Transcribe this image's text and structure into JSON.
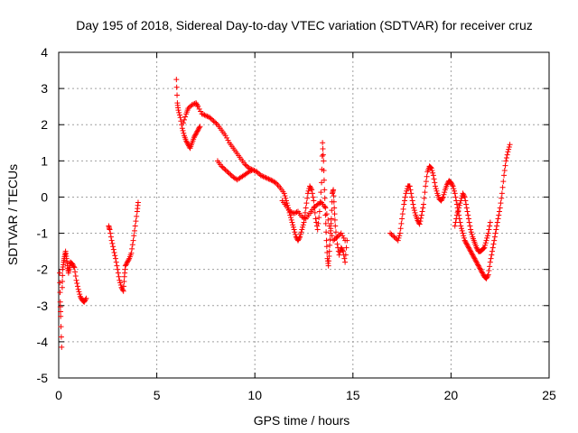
{
  "chart_data": {
    "type": "scatter",
    "title": "Day 195 of 2018, Sidereal Day-to-day VTEC variation (SDTVAR) for receiver cruz",
    "xlabel": "GPS time / hours",
    "ylabel": "SDTVAR / TECUs",
    "xlim": [
      0,
      25
    ],
    "ylim": [
      -5,
      4
    ],
    "xticks": [
      "0",
      "5",
      "10",
      "15",
      "20",
      "25"
    ],
    "yticks": [
      "-5",
      "-4",
      "-3",
      "-2",
      "-1",
      "0",
      "1",
      "2",
      "3",
      "4"
    ],
    "grid": true,
    "legend": "none",
    "marker": "+",
    "marker_color": "#ff0000",
    "series": [
      {
        "name": "SDTVAR",
        "points": [
          [
            0.05,
            -2.1
          ],
          [
            0.08,
            -2.9
          ],
          [
            0.1,
            -3.3
          ],
          [
            0.15,
            -4.15
          ],
          [
            0.18,
            -2.5
          ],
          [
            0.2,
            -2.0
          ],
          [
            0.25,
            -1.8
          ],
          [
            0.3,
            -1.65
          ],
          [
            0.35,
            -1.5
          ],
          [
            0.4,
            -1.7
          ],
          [
            0.45,
            -1.9
          ],
          [
            0.5,
            -2.1
          ],
          [
            0.55,
            -1.95
          ],
          [
            0.6,
            -1.8
          ],
          [
            0.7,
            -1.85
          ],
          [
            0.8,
            -1.95
          ],
          [
            0.9,
            -2.3
          ],
          [
            1.0,
            -2.55
          ],
          [
            1.1,
            -2.75
          ],
          [
            1.2,
            -2.85
          ],
          [
            1.3,
            -2.9
          ],
          [
            1.4,
            -2.8
          ],
          [
            2.55,
            -0.8
          ],
          [
            2.6,
            -0.9
          ],
          [
            2.7,
            -1.2
          ],
          [
            2.8,
            -1.45
          ],
          [
            2.9,
            -1.7
          ],
          [
            3.0,
            -2.0
          ],
          [
            3.1,
            -2.3
          ],
          [
            3.2,
            -2.5
          ],
          [
            3.3,
            -2.6
          ],
          [
            3.35,
            -2.2
          ],
          [
            3.4,
            -1.9
          ],
          [
            3.5,
            -1.8
          ],
          [
            3.6,
            -1.7
          ],
          [
            3.7,
            -1.55
          ],
          [
            3.8,
            -1.2
          ],
          [
            3.9,
            -0.8
          ],
          [
            4.0,
            -0.4
          ],
          [
            4.05,
            -0.15
          ],
          [
            6.0,
            3.25
          ],
          [
            6.05,
            2.6
          ],
          [
            6.1,
            2.4
          ],
          [
            6.2,
            2.2
          ],
          [
            6.3,
            1.9
          ],
          [
            6.4,
            1.7
          ],
          [
            6.5,
            1.55
          ],
          [
            6.6,
            1.45
          ],
          [
            6.7,
            1.35
          ],
          [
            6.8,
            1.5
          ],
          [
            6.9,
            1.65
          ],
          [
            7.0,
            1.75
          ],
          [
            7.1,
            1.85
          ],
          [
            7.2,
            1.95
          ],
          [
            6.35,
            2.05
          ],
          [
            6.5,
            2.3
          ],
          [
            6.6,
            2.45
          ],
          [
            6.8,
            2.55
          ],
          [
            7.0,
            2.6
          ],
          [
            7.1,
            2.5
          ],
          [
            7.3,
            2.3
          ],
          [
            7.5,
            2.25
          ],
          [
            7.7,
            2.2
          ],
          [
            7.9,
            2.1
          ],
          [
            8.1,
            2.0
          ],
          [
            8.3,
            1.85
          ],
          [
            8.5,
            1.7
          ],
          [
            8.7,
            1.5
          ],
          [
            8.9,
            1.35
          ],
          [
            9.1,
            1.2
          ],
          [
            9.3,
            1.05
          ],
          [
            9.5,
            0.9
          ],
          [
            9.7,
            0.8
          ],
          [
            9.9,
            0.75
          ],
          [
            8.1,
            1.0
          ],
          [
            8.3,
            0.85
          ],
          [
            8.5,
            0.75
          ],
          [
            8.7,
            0.65
          ],
          [
            8.9,
            0.55
          ],
          [
            9.1,
            0.48
          ],
          [
            9.3,
            0.55
          ],
          [
            9.5,
            0.62
          ],
          [
            9.7,
            0.7
          ],
          [
            9.9,
            0.75
          ],
          [
            10.1,
            0.7
          ],
          [
            10.3,
            0.6
          ],
          [
            10.5,
            0.55
          ],
          [
            10.7,
            0.5
          ],
          [
            10.9,
            0.45
          ],
          [
            11.1,
            0.38
          ],
          [
            11.3,
            0.25
          ],
          [
            11.5,
            0.1
          ],
          [
            11.6,
            -0.1
          ],
          [
            11.7,
            -0.3
          ],
          [
            11.8,
            -0.5
          ],
          [
            11.9,
            -0.7
          ],
          [
            12.0,
            -0.9
          ],
          [
            12.1,
            -1.1
          ],
          [
            12.2,
            -1.2
          ],
          [
            12.3,
            -1.1
          ],
          [
            12.4,
            -0.9
          ],
          [
            12.5,
            -0.7
          ],
          [
            12.6,
            -0.3
          ],
          [
            12.7,
            0.1
          ],
          [
            12.8,
            0.3
          ],
          [
            12.9,
            0.2
          ],
          [
            13.0,
            -0.1
          ],
          [
            13.1,
            -0.6
          ],
          [
            13.2,
            -0.9
          ],
          [
            13.3,
            -0.4
          ],
          [
            13.4,
            0.4
          ],
          [
            13.45,
            1.5
          ],
          [
            13.5,
            1.0
          ],
          [
            13.55,
            0.2
          ],
          [
            13.6,
            -0.5
          ],
          [
            13.65,
            -1.2
          ],
          [
            13.7,
            -1.7
          ],
          [
            13.75,
            -1.9
          ],
          [
            13.8,
            -1.5
          ],
          [
            13.85,
            -1.0
          ],
          [
            13.9,
            -0.6
          ],
          [
            13.95,
            0.1
          ],
          [
            14.0,
            0.2
          ],
          [
            14.05,
            -0.3
          ],
          [
            14.1,
            -0.8
          ],
          [
            14.2,
            -1.3
          ],
          [
            14.3,
            -1.6
          ],
          [
            14.4,
            -1.4
          ],
          [
            14.5,
            -1.5
          ],
          [
            14.6,
            -1.8
          ],
          [
            14.7,
            -1.2
          ],
          [
            11.4,
            -0.1
          ],
          [
            11.6,
            -0.25
          ],
          [
            11.8,
            -0.4
          ],
          [
            12.0,
            -0.45
          ],
          [
            12.2,
            -0.4
          ],
          [
            12.4,
            -0.55
          ],
          [
            12.6,
            -0.6
          ],
          [
            12.8,
            -0.45
          ],
          [
            13.0,
            -0.3
          ],
          [
            13.2,
            -0.2
          ],
          [
            13.4,
            -0.15
          ],
          [
            13.6,
            -0.3
          ],
          [
            13.8,
            -0.8
          ],
          [
            14.0,
            -1.2
          ],
          [
            14.2,
            -1.1
          ],
          [
            14.4,
            -1.0
          ],
          [
            14.6,
            -1.2
          ],
          [
            16.9,
            -1.0
          ],
          [
            17.1,
            -1.1
          ],
          [
            17.3,
            -1.2
          ],
          [
            17.4,
            -1.0
          ],
          [
            17.5,
            -0.6
          ],
          [
            17.6,
            -0.2
          ],
          [
            17.7,
            0.1
          ],
          [
            17.8,
            0.3
          ],
          [
            17.9,
            0.3
          ],
          [
            18.0,
            0.0
          ],
          [
            18.1,
            -0.3
          ],
          [
            18.2,
            -0.5
          ],
          [
            18.3,
            -0.65
          ],
          [
            18.4,
            -0.75
          ],
          [
            18.5,
            -0.5
          ],
          [
            18.6,
            -0.2
          ],
          [
            18.7,
            0.3
          ],
          [
            18.8,
            0.7
          ],
          [
            18.9,
            0.85
          ],
          [
            19.0,
            0.8
          ],
          [
            19.1,
            0.6
          ],
          [
            19.2,
            0.3
          ],
          [
            19.3,
            0.1
          ],
          [
            19.4,
            -0.05
          ],
          [
            19.5,
            -0.1
          ],
          [
            19.6,
            0.0
          ],
          [
            19.7,
            0.2
          ],
          [
            19.8,
            0.35
          ],
          [
            19.9,
            0.45
          ],
          [
            20.0,
            0.4
          ],
          [
            20.1,
            0.3
          ],
          [
            20.2,
            0.1
          ],
          [
            20.3,
            -0.2
          ],
          [
            20.4,
            -0.5
          ],
          [
            20.5,
            -0.8
          ],
          [
            20.6,
            -1.0
          ],
          [
            20.7,
            -1.2
          ],
          [
            20.8,
            -1.3
          ],
          [
            20.9,
            -1.4
          ],
          [
            21.0,
            -1.5
          ],
          [
            21.1,
            -1.6
          ],
          [
            21.2,
            -1.7
          ],
          [
            21.3,
            -1.8
          ],
          [
            21.4,
            -1.9
          ],
          [
            21.5,
            -2.0
          ],
          [
            21.6,
            -2.1
          ],
          [
            21.7,
            -2.2
          ],
          [
            21.8,
            -2.25
          ],
          [
            21.9,
            -2.15
          ],
          [
            22.0,
            -1.8
          ],
          [
            22.1,
            -1.5
          ],
          [
            22.2,
            -1.2
          ],
          [
            22.3,
            -0.9
          ],
          [
            22.4,
            -0.6
          ],
          [
            22.5,
            -0.3
          ],
          [
            22.6,
            0.1
          ],
          [
            22.7,
            0.6
          ],
          [
            22.8,
            1.0
          ],
          [
            22.9,
            1.25
          ],
          [
            23.0,
            1.45
          ],
          [
            20.2,
            -0.8
          ],
          [
            20.3,
            -0.5
          ],
          [
            20.4,
            -0.3
          ],
          [
            20.5,
            -0.1
          ],
          [
            20.6,
            0.1
          ],
          [
            20.7,
            0.0
          ],
          [
            20.8,
            -0.3
          ],
          [
            20.9,
            -0.6
          ],
          [
            21.0,
            -0.9
          ],
          [
            21.1,
            -1.1
          ],
          [
            21.2,
            -1.25
          ],
          [
            21.3,
            -1.4
          ],
          [
            21.4,
            -1.5
          ],
          [
            21.5,
            -1.5
          ],
          [
            21.6,
            -1.45
          ],
          [
            21.7,
            -1.4
          ],
          [
            21.8,
            -1.2
          ],
          [
            21.9,
            -1.0
          ],
          [
            22.0,
            -0.7
          ]
        ]
      }
    ]
  }
}
